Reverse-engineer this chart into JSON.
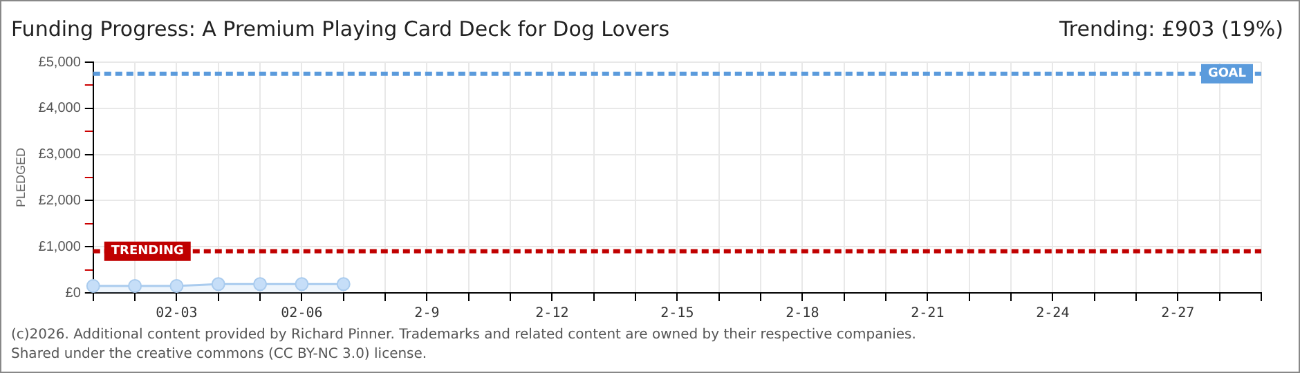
{
  "chart_data": {
    "type": "area",
    "title": "Funding Progress: A Premium Playing Card Deck for Dog Lovers",
    "subtitle": "Trending: £903 (19%)",
    "ylabel": "PLEDGED",
    "categories": [
      null,
      null,
      "02-03",
      null,
      null,
      "02-06",
      null,
      null,
      "2-9",
      null,
      null,
      "2-12",
      null,
      null,
      "2-15",
      null,
      null,
      "2-18",
      null,
      null,
      "2-21",
      null,
      null,
      "2-24",
      null,
      null,
      "2-27",
      null,
      null
    ],
    "series": [
      {
        "color": "#a9cbee",
        "values": [
          150,
          150,
          150,
          190,
          190,
          190,
          190,
          null,
          null,
          null,
          null,
          null,
          null,
          null,
          null,
          null,
          null,
          null,
          null,
          null,
          null,
          null,
          null,
          null,
          null,
          null,
          null,
          null,
          null
        ]
      }
    ],
    "ylim": [
      0,
      5000
    ],
    "yticks": [
      {
        "value": 0,
        "label": "£0"
      },
      {
        "value": 500,
        "label": null
      },
      {
        "value": 1000,
        "label": "£1,000"
      },
      {
        "value": 1500,
        "label": null
      },
      {
        "value": 2000,
        "label": "£2,000"
      },
      {
        "value": 2500,
        "label": null
      },
      {
        "value": 3000,
        "label": "£3,000"
      },
      {
        "value": 3500,
        "label": null
      },
      {
        "value": 4000,
        "label": "£4,000"
      },
      {
        "value": 4500,
        "label": null
      },
      {
        "value": 5000,
        "label": "£5,000"
      }
    ],
    "ref_lines": [
      {
        "axis": "y",
        "value": 4750,
        "label": "GOAL",
        "color": "#5b9bdc",
        "line_style": "dashed"
      },
      {
        "axis": "y",
        "value": 903,
        "label": "TRENDING",
        "color": "#c00000",
        "line_style": "dashed"
      }
    ],
    "annotations": [
      "(c)2026. Additional content provided by Richard Pinner. Trademarks and related content are owned by their respective companies.",
      "Shared under the creative commons (CC BY-NC 3.0) license."
    ],
    "grid": true,
    "legend": false,
    "marker": "circle",
    "line_style": "solid"
  }
}
